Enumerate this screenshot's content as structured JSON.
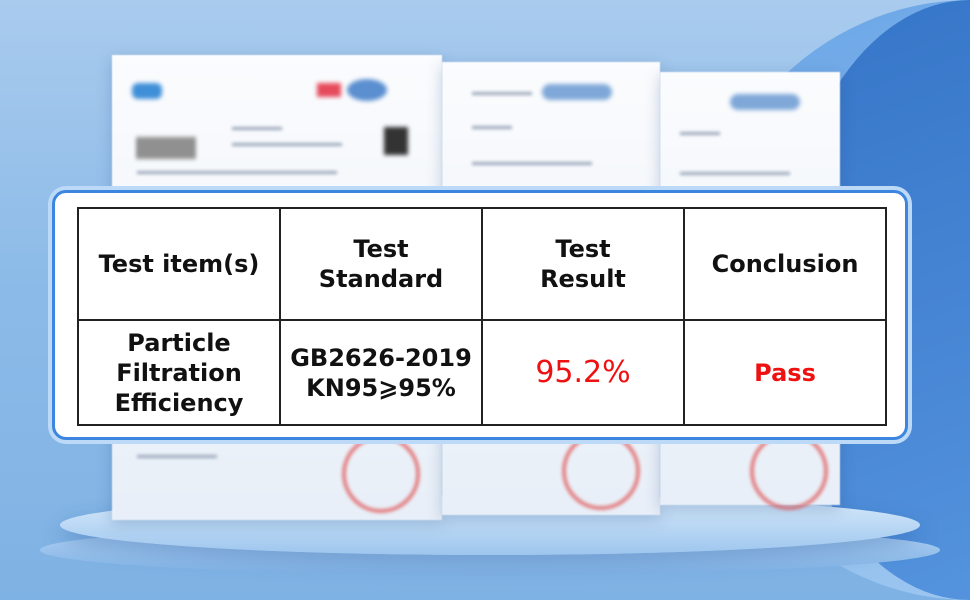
{
  "table": {
    "headers": [
      "Test item(s)",
      "Test\nStandard",
      "Test\nResult",
      "Conclusion"
    ],
    "row": {
      "item": "Particle\nFiltration\nEfficiency",
      "standard": "GB2626-2019\nKN95⩾95%",
      "result": "95.2%",
      "conclusion": "Pass"
    }
  },
  "colors": {
    "result": "#ee1111",
    "frame": "#3d86e0"
  }
}
